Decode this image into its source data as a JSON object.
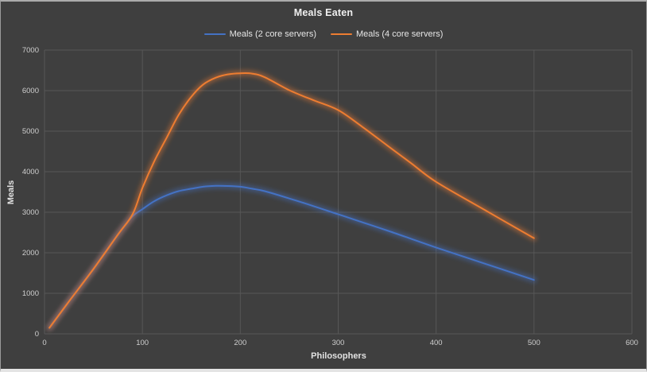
{
  "theme": {
    "background": "#3F3F3F",
    "grid_color": "#575757",
    "title_color": "#F0F0F0",
    "tick_color": "#CFCFCF",
    "axis_title_color": "#E2E2E2",
    "frame_border_color": "#ABABAB"
  },
  "chart_data": {
    "type": "line",
    "title": "Meals Eaten",
    "xlabel": "Philosophers",
    "ylabel": "Meals",
    "legend_position": "top",
    "grid": "both",
    "x_axis": {
      "min": 0,
      "max": 600,
      "tick_step": 100,
      "ticks": [
        0,
        100,
        200,
        300,
        400,
        500,
        600
      ]
    },
    "y_axis": {
      "min": 0,
      "max": 7000,
      "tick_step": 1000,
      "ticks": [
        0,
        1000,
        2000,
        3000,
        4000,
        5000,
        6000,
        7000
      ]
    },
    "x": [
      5,
      25,
      50,
      75,
      90,
      100,
      112,
      125,
      137,
      150,
      162,
      175,
      187,
      200,
      212,
      225,
      250,
      275,
      300,
      325,
      350,
      375,
      400,
      450,
      500
    ],
    "series": [
      {
        "name": "Meals (2 core servers)",
        "color": "#4472C4",
        "values": [
          150,
          800,
          1600,
          2450,
          2900,
          3075,
          3270,
          3420,
          3520,
          3580,
          3630,
          3650,
          3648,
          3630,
          3580,
          3520,
          3340,
          3150,
          2950,
          2750,
          2550,
          2340,
          2130,
          1730,
          1330
        ]
      },
      {
        "name": "Meals (4 core servers)",
        "color": "#ED7D31",
        "values": [
          150,
          800,
          1600,
          2450,
          2950,
          3600,
          4250,
          4850,
          5400,
          5850,
          6150,
          6320,
          6400,
          6428,
          6420,
          6330,
          6010,
          5760,
          5520,
          5100,
          4650,
          4200,
          3750,
          3050,
          2360
        ]
      }
    ]
  }
}
